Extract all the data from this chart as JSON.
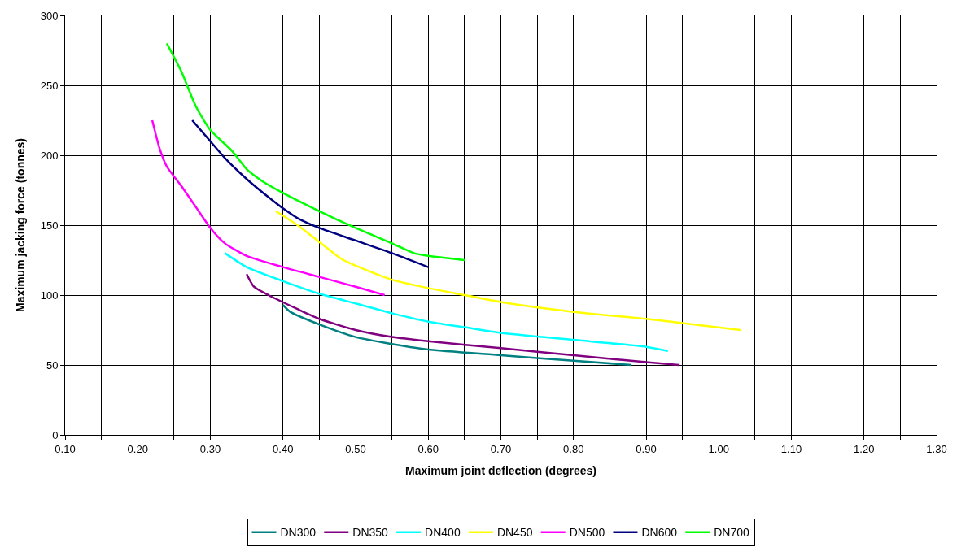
{
  "chart_data": {
    "type": "line",
    "xlabel": "Maximum joint deflection (degrees)",
    "ylabel": "Maximum jacking force (tonnes)",
    "xlim": [
      0.1,
      1.3
    ],
    "xticks": [
      {
        "value": 0.1,
        "label": "0.10"
      },
      {
        "value": 0.15,
        "label": null
      },
      {
        "value": 0.2,
        "label": "0.20"
      },
      {
        "value": 0.25,
        "label": null
      },
      {
        "value": 0.3,
        "label": "0.30"
      },
      {
        "value": 0.35,
        "label": null
      },
      {
        "value": 0.4,
        "label": "0.40"
      },
      {
        "value": 0.45,
        "label": null
      },
      {
        "value": 0.5,
        "label": "0.50"
      },
      {
        "value": 0.55,
        "label": null
      },
      {
        "value": 0.6,
        "label": "0.60"
      },
      {
        "value": 0.65,
        "label": null
      },
      {
        "value": 0.7,
        "label": "0.70"
      },
      {
        "value": 0.75,
        "label": null
      },
      {
        "value": 0.8,
        "label": "0.80"
      },
      {
        "value": 0.85,
        "label": null
      },
      {
        "value": 0.9,
        "label": "0.90"
      },
      {
        "value": 0.95,
        "label": null
      },
      {
        "value": 1.0,
        "label": "1.00"
      },
      {
        "value": 1.05,
        "label": null
      },
      {
        "value": 1.1,
        "label": "1.10"
      },
      {
        "value": 1.15,
        "label": null
      },
      {
        "value": 1.2,
        "label": "1.20"
      },
      {
        "value": 1.25,
        "label": null
      },
      {
        "value": 1.3,
        "label": "1.30"
      }
    ],
    "ylim": [
      0,
      300
    ],
    "yticks": [
      0,
      50,
      100,
      150,
      200,
      250,
      300
    ],
    "grid": true,
    "legend": "bottom",
    "marker": "none",
    "line_style": "solid",
    "series": [
      {
        "name": "DN300",
        "color": "#008080",
        "x": [
          0.4,
          0.41,
          0.45,
          0.5,
          0.55,
          0.6,
          0.7,
          0.8,
          0.88
        ],
        "values": [
          93,
          88,
          79,
          70,
          65,
          61,
          57,
          53,
          50
        ]
      },
      {
        "name": "DN350",
        "color": "#800080",
        "x": [
          0.35,
          0.36,
          0.38,
          0.42,
          0.45,
          0.5,
          0.55,
          0.6,
          0.7,
          0.8,
          0.9,
          0.945
        ],
        "values": [
          115,
          106,
          100,
          90,
          83,
          75,
          70,
          67,
          62,
          57,
          52,
          50
        ]
      },
      {
        "name": "DN400",
        "color": "#00ffff",
        "x": [
          0.32,
          0.35,
          0.4,
          0.45,
          0.5,
          0.55,
          0.6,
          0.65,
          0.7,
          0.8,
          0.9,
          0.93
        ],
        "values": [
          130,
          120,
          110,
          101,
          94,
          87,
          81,
          77,
          73,
          68,
          63,
          60
        ]
      },
      {
        "name": "DN450",
        "color": "#ffff00",
        "x": [
          0.39,
          0.42,
          0.45,
          0.48,
          0.5,
          0.55,
          0.6,
          0.65,
          0.7,
          0.8,
          0.9,
          0.95,
          1.03
        ],
        "values": [
          160,
          150,
          138,
          126,
          121,
          111,
          105,
          100,
          95,
          88,
          83,
          80,
          75
        ]
      },
      {
        "name": "DN500",
        "color": "#ff00ff",
        "x": [
          0.22,
          0.23,
          0.24,
          0.26,
          0.28,
          0.3,
          0.32,
          0.35,
          0.4,
          0.45,
          0.5,
          0.54
        ],
        "values": [
          225,
          205,
          192,
          178,
          163,
          148,
          137,
          128,
          120,
          113,
          106,
          100
        ]
      },
      {
        "name": "DN600",
        "color": "#000080",
        "x": [
          0.275,
          0.3,
          0.32,
          0.35,
          0.38,
          0.4,
          0.42,
          0.45,
          0.5,
          0.55,
          0.6
        ],
        "values": [
          225,
          210,
          198,
          183,
          170,
          162,
          155,
          148,
          139,
          130,
          120
        ]
      },
      {
        "name": "DN700",
        "color": "#00ff00",
        "x": [
          0.24,
          0.26,
          0.28,
          0.3,
          0.33,
          0.35,
          0.37,
          0.4,
          0.45,
          0.5,
          0.55,
          0.58,
          0.6,
          0.65
        ],
        "values": [
          280,
          260,
          235,
          218,
          203,
          190,
          182,
          173,
          160,
          148,
          137,
          130,
          128,
          125
        ]
      }
    ]
  }
}
